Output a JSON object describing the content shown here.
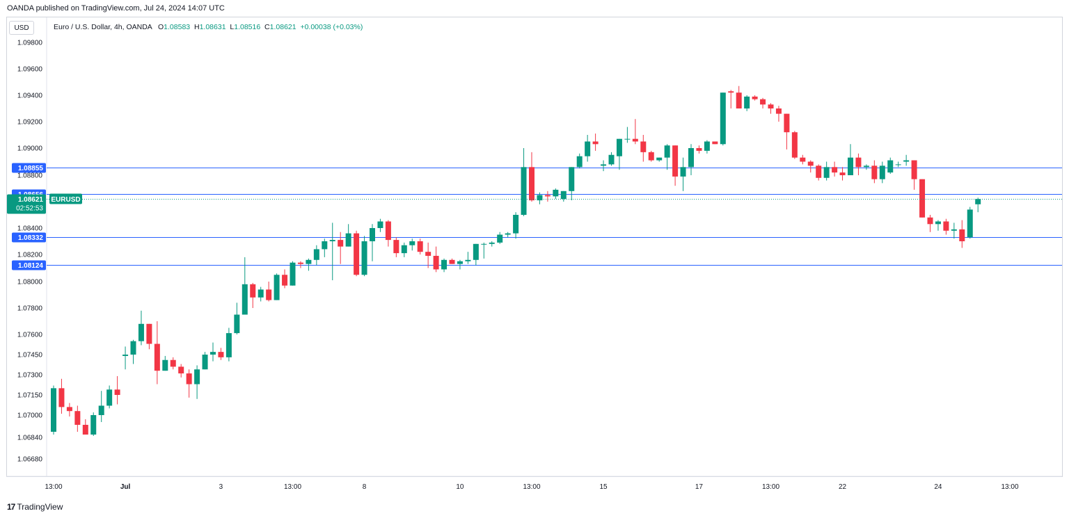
{
  "caption": "OANDA published on TradingView.com, Jul 24, 2024 14:07 UTC",
  "currency": "USD",
  "legend": {
    "symbol_desc": "Euro / U.S. Dollar, 4h, OANDA",
    "o_label": "O",
    "o": "1.08583",
    "h_label": "H",
    "h": "1.08631",
    "l_label": "L",
    "l": "1.08516",
    "c_label": "C",
    "c": "1.08621",
    "change": "+0.00038 (+0.03%)"
  },
  "footer": {
    "logo_mark": "17",
    "brand": "TradingView"
  },
  "colors": {
    "up": "#089981",
    "down": "#f23645",
    "level_line": "#2962ff",
    "price_tag": "#089981"
  },
  "chart_data": {
    "type": "candlestick",
    "symbol": "EURUSD",
    "interval": "4h",
    "y_ticks": [
      {
        "value": 1.098,
        "label": "1.09800"
      },
      {
        "value": 1.096,
        "label": "1.09600"
      },
      {
        "value": 1.094,
        "label": "1.09400"
      },
      {
        "value": 1.092,
        "label": "1.09200"
      },
      {
        "value": 1.09,
        "label": "1.09000"
      },
      {
        "value": 1.088,
        "label": "1.08800"
      },
      {
        "value": 1.084,
        "label": "1.08400"
      },
      {
        "value": 1.082,
        "label": "1.08200"
      },
      {
        "value": 1.08,
        "label": "1.08000"
      },
      {
        "value": 1.078,
        "label": "1.07800"
      },
      {
        "value": 1.076,
        "label": "1.07600"
      },
      {
        "value": 1.0745,
        "label": "1.07450"
      },
      {
        "value": 1.073,
        "label": "1.07300"
      },
      {
        "value": 1.0715,
        "label": "1.07150"
      },
      {
        "value": 1.07,
        "label": "1.07000"
      },
      {
        "value": 1.0684,
        "label": "1.06840"
      },
      {
        "value": 1.0668,
        "label": "1.06680"
      }
    ],
    "x_ticks": [
      {
        "index": 0,
        "label": "13:00"
      },
      {
        "index": 9,
        "label": "Jul"
      },
      {
        "index": 21,
        "label": "3"
      },
      {
        "index": 30,
        "label": "13:00"
      },
      {
        "index": 39,
        "label": "8"
      },
      {
        "index": 51,
        "label": "10"
      },
      {
        "index": 60,
        "label": "13:00"
      },
      {
        "index": 69,
        "label": "15"
      },
      {
        "index": 81,
        "label": "17"
      },
      {
        "index": 90,
        "label": "13:00"
      },
      {
        "index": 99,
        "label": "22"
      },
      {
        "index": 111,
        "label": "24"
      },
      {
        "index": 120,
        "label": "13:00"
      }
    ],
    "levels": [
      {
        "value": 1.08855,
        "label": "1.08855"
      },
      {
        "value": 1.08656,
        "label": "1.08656"
      },
      {
        "value": 1.08332,
        "label": "1.08332"
      },
      {
        "value": 1.08124,
        "label": "1.08124"
      }
    ],
    "last_price": {
      "value": 1.08621,
      "label": "1.08621",
      "countdown": "02:52:53",
      "symbol_label": "EURUSD"
    },
    "candles": [
      [
        1.0688,
        1.0722,
        1.0686,
        1.072
      ],
      [
        1.072,
        1.0727,
        1.0701,
        1.0706
      ],
      [
        1.0706,
        1.0709,
        1.0699,
        1.0703
      ],
      [
        1.0703,
        1.0707,
        1.0688,
        1.0693
      ],
      [
        1.0693,
        1.0697,
        1.0686,
        1.0686
      ],
      [
        1.0686,
        1.0702,
        1.0685,
        1.07
      ],
      [
        1.07,
        1.0718,
        1.0695,
        1.0707
      ],
      [
        1.0707,
        1.0722,
        1.0705,
        1.0719
      ],
      [
        1.0719,
        1.0729,
        1.0708,
        1.0715
      ],
      [
        1.0744,
        1.0751,
        1.0734,
        1.0745
      ],
      [
        1.0745,
        1.0756,
        1.0738,
        1.0755
      ],
      [
        1.0755,
        1.0778,
        1.0752,
        1.0768
      ],
      [
        1.0768,
        1.0768,
        1.0749,
        1.0753
      ],
      [
        1.0753,
        1.077,
        1.0723,
        1.0733
      ],
      [
        1.0733,
        1.0744,
        1.0733,
        1.0741
      ],
      [
        1.0741,
        1.0743,
        1.0734,
        1.0736
      ],
      [
        1.0736,
        1.0738,
        1.0728,
        1.0731
      ],
      [
        1.0731,
        1.0734,
        1.0713,
        1.0723
      ],
      [
        1.0723,
        1.0737,
        1.0712,
        1.0734
      ],
      [
        1.0734,
        1.0747,
        1.0734,
        1.0745
      ],
      [
        1.0745,
        1.0754,
        1.074,
        1.0747
      ],
      [
        1.0747,
        1.075,
        1.0741,
        1.0743
      ],
      [
        1.0743,
        1.0765,
        1.074,
        1.0761
      ],
      [
        1.0761,
        1.0784,
        1.076,
        1.0775
      ],
      [
        1.0775,
        1.0818,
        1.0775,
        1.0798
      ],
      [
        1.0798,
        1.0799,
        1.078,
        1.0788
      ],
      [
        1.0788,
        1.0796,
        1.0785,
        1.0794
      ],
      [
        1.0794,
        1.08,
        1.0785,
        1.0786
      ],
      [
        1.0786,
        1.0806,
        1.0786,
        1.0805
      ],
      [
        1.0805,
        1.0809,
        1.0795,
        1.0797
      ],
      [
        1.0797,
        1.0815,
        1.0797,
        1.0814
      ],
      [
        1.0814,
        1.0815,
        1.081,
        1.0813
      ],
      [
        1.0813,
        1.0817,
        1.0808,
        1.0816
      ],
      [
        1.0816,
        1.0827,
        1.0812,
        1.0824
      ],
      [
        1.0824,
        1.0832,
        1.0818,
        1.083
      ],
      [
        1.083,
        1.0844,
        1.0801,
        1.0831
      ],
      [
        1.0831,
        1.0837,
        1.0813,
        1.0826
      ],
      [
        1.0826,
        1.0843,
        1.0826,
        1.0836
      ],
      [
        1.0836,
        1.0838,
        1.0804,
        1.0805
      ],
      [
        1.0805,
        1.0834,
        1.0804,
        1.083
      ],
      [
        1.083,
        1.0843,
        1.0815,
        1.084
      ],
      [
        1.084,
        1.0847,
        1.0837,
        1.0845
      ],
      [
        1.0845,
        1.0846,
        1.0826,
        1.0831
      ],
      [
        1.0831,
        1.0833,
        1.0818,
        1.0821
      ],
      [
        1.0821,
        1.0829,
        1.0818,
        1.0827
      ],
      [
        1.0827,
        1.0832,
        1.0823,
        1.083
      ],
      [
        1.083,
        1.0832,
        1.082,
        1.0822
      ],
      [
        1.0822,
        1.0829,
        1.081,
        1.0819
      ],
      [
        1.0819,
        1.0826,
        1.0807,
        1.0809
      ],
      [
        1.0809,
        1.0817,
        1.0807,
        1.0816
      ],
      [
        1.0816,
        1.0817,
        1.0813,
        1.0813
      ],
      [
        1.0813,
        1.0816,
        1.0809,
        1.0815
      ],
      [
        1.0815,
        1.0822,
        1.0813,
        1.0816
      ],
      [
        1.0816,
        1.0828,
        1.0812,
        1.0828
      ],
      [
        1.0828,
        1.0829,
        1.0817,
        1.0828
      ],
      [
        1.0828,
        1.083,
        1.0826,
        1.0829
      ],
      [
        1.0829,
        1.0837,
        1.0828,
        1.0835
      ],
      [
        1.0835,
        1.0837,
        1.0833,
        1.0836
      ],
      [
        1.0836,
        1.0852,
        1.0832,
        1.085
      ],
      [
        1.085,
        1.09,
        1.0849,
        1.0886
      ],
      [
        1.0886,
        1.0897,
        1.086,
        1.0861
      ],
      [
        1.0861,
        1.0867,
        1.0858,
        1.0865
      ],
      [
        1.0865,
        1.0868,
        1.086,
        1.0864
      ],
      [
        1.0864,
        1.087,
        1.0862,
        1.0869
      ],
      [
        1.0862,
        1.0868,
        1.086,
        1.0868
      ],
      [
        1.0868,
        1.0886,
        1.0861,
        1.0886
      ],
      [
        1.0886,
        1.0896,
        1.0885,
        1.0894
      ],
      [
        1.0894,
        1.091,
        1.089,
        1.0905
      ],
      [
        1.0905,
        1.0911,
        1.0898,
        1.0903
      ],
      [
        1.0887,
        1.0891,
        1.0883,
        1.0888
      ],
      [
        1.0888,
        1.0897,
        1.0887,
        1.0895
      ],
      [
        1.0894,
        1.0907,
        1.0884,
        1.0907
      ],
      [
        1.0907,
        1.0916,
        1.0904,
        1.0907
      ],
      [
        1.0907,
        1.0922,
        1.0903,
        1.0905
      ],
      [
        1.0905,
        1.091,
        1.089,
        1.0897
      ],
      [
        1.0897,
        1.0898,
        1.089,
        1.0891
      ],
      [
        1.0891,
        1.0893,
        1.089,
        1.0893
      ],
      [
        1.0893,
        1.0903,
        1.0884,
        1.0902
      ],
      [
        1.0902,
        1.0902,
        1.0872,
        1.0879
      ],
      [
        1.0879,
        1.0893,
        1.0868,
        1.0886
      ],
      [
        1.0886,
        1.0903,
        1.088,
        1.09
      ],
      [
        1.09,
        1.0902,
        1.0896,
        1.0898
      ],
      [
        1.0898,
        1.0906,
        1.0896,
        1.0905
      ],
      [
        1.0905,
        1.0905,
        1.0903,
        1.0903
      ],
      [
        1.0903,
        1.0942,
        1.0902,
        1.0942
      ],
      [
        1.0943,
        1.0944,
        1.093,
        1.0942
      ],
      [
        1.0942,
        1.0947,
        1.093,
        1.093
      ],
      [
        1.093,
        1.094,
        1.0928,
        1.0939
      ],
      [
        1.0939,
        1.094,
        1.0936,
        1.0937
      ],
      [
        1.0937,
        1.0938,
        1.093,
        1.0933
      ],
      [
        1.0933,
        1.0934,
        1.0926,
        1.093
      ],
      [
        1.093,
        1.0932,
        1.092,
        1.0926
      ],
      [
        1.0926,
        1.0926,
        1.0899,
        1.0912
      ],
      [
        1.0912,
        1.0913,
        1.0892,
        1.0893
      ],
      [
        1.0893,
        1.0895,
        1.0888,
        1.089
      ],
      [
        1.089,
        1.0891,
        1.0882,
        1.0887
      ],
      [
        1.0887,
        1.0888,
        1.0876,
        1.0878
      ],
      [
        1.0878,
        1.089,
        1.0876,
        1.0886
      ],
      [
        1.0886,
        1.089,
        1.0879,
        1.0882
      ],
      [
        1.0882,
        1.0886,
        1.0876,
        1.088
      ],
      [
        1.088,
        1.0903,
        1.088,
        1.0893
      ],
      [
        1.0893,
        1.0896,
        1.088,
        1.0886
      ],
      [
        1.0886,
        1.0888,
        1.0884,
        1.0887
      ],
      [
        1.0887,
        1.0891,
        1.0874,
        1.0877
      ],
      [
        1.0877,
        1.089,
        1.0874,
        1.0887
      ],
      [
        1.0882,
        1.0893,
        1.0881,
        1.0891
      ],
      [
        1.0888,
        1.089,
        1.0886,
        1.0888
      ],
      [
        1.089,
        1.0895,
        1.0887,
        1.0891
      ],
      [
        1.0891,
        1.0891,
        1.0869,
        1.0877
      ],
      [
        1.0877,
        1.0877,
        1.0848,
        1.0848
      ],
      [
        1.0848,
        1.085,
        1.0837,
        1.0843
      ],
      [
        1.0843,
        1.0846,
        1.0838,
        1.0845
      ],
      [
        1.0845,
        1.0847,
        1.0835,
        1.0838
      ],
      [
        1.0838,
        1.0844,
        1.0832,
        1.0839
      ],
      [
        1.0839,
        1.0846,
        1.0825,
        1.083
      ],
      [
        1.0833,
        1.0856,
        1.0832,
        1.0854
      ],
      [
        1.0858,
        1.0863,
        1.0852,
        1.0862
      ]
    ]
  }
}
